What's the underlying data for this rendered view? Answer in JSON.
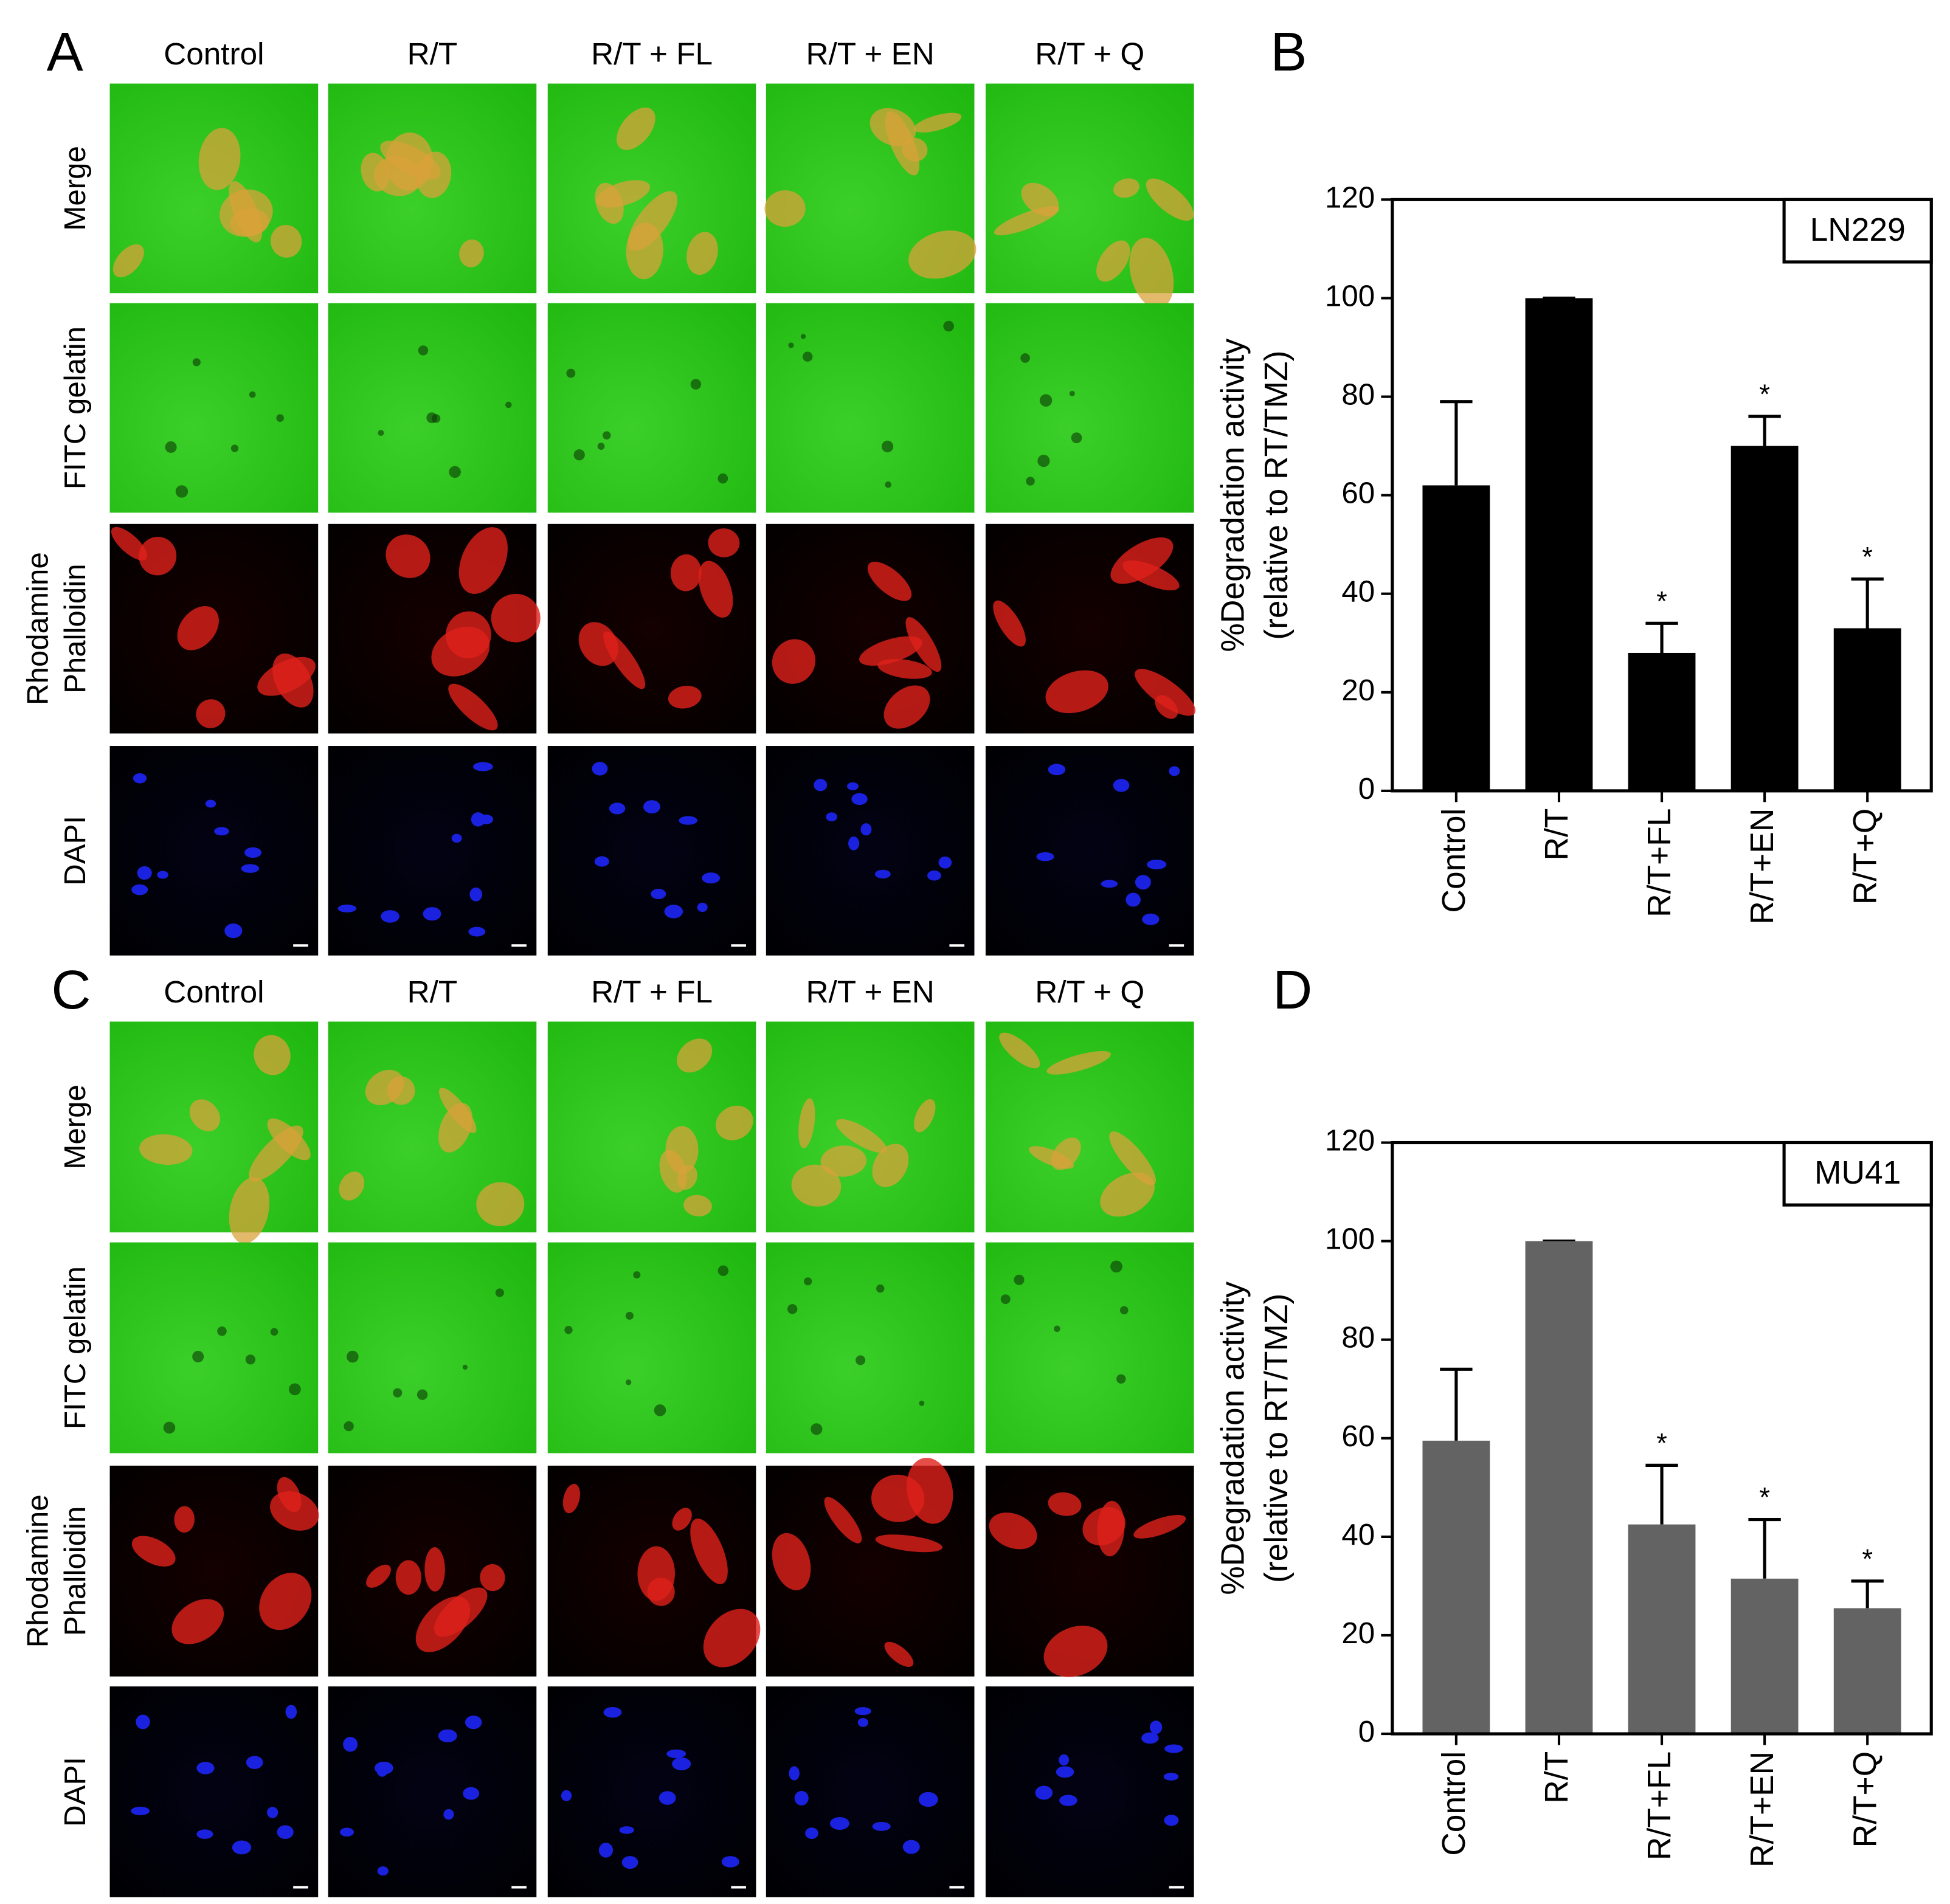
{
  "panel_a": {
    "label": "A",
    "columns": [
      "Control",
      "R/T",
      "R/T + FL",
      "R/T + EN",
      "R/T + Q"
    ],
    "rows": [
      "Merge",
      "FITC gelatin",
      [
        "Rhodamine",
        "Phalloidin"
      ],
      "DAPI"
    ]
  },
  "panel_c": {
    "label": "C",
    "columns": [
      "Control",
      "R/T",
      "R/T + FL",
      "R/T + EN",
      "R/T + Q"
    ],
    "rows": [
      "Merge",
      "FITC gelatin",
      [
        "Rhodamine",
        "Phalloidin"
      ],
      "DAPI"
    ]
  },
  "chart_data": [
    {
      "type": "bar",
      "panel": "B",
      "annotation": "LN229",
      "y_label": [
        "%Degradation activity",
        "(relative to RT/TMZ)"
      ],
      "categories": [
        "Control",
        "R/T",
        "R/T+FL",
        "R/T+EN",
        "R/T+Q"
      ],
      "values": [
        62,
        100,
        28,
        70,
        33
      ],
      "errors": [
        17,
        0,
        6,
        6,
        10
      ],
      "significance": [
        null,
        null,
        "*",
        "*",
        "*"
      ],
      "color": "#000000",
      "ylim": [
        0,
        120
      ],
      "yticks": [
        0,
        20,
        40,
        60,
        80,
        100,
        120
      ]
    },
    {
      "type": "bar",
      "panel": "D",
      "annotation": "MU41",
      "y_label": [
        "%Degradation activity",
        "(relative to RT/TMZ)"
      ],
      "categories": [
        "Control",
        "R/T",
        "R/T+FL",
        "R/T+EN",
        "R/T+Q"
      ],
      "values": [
        59.5,
        100,
        42.5,
        31.5,
        25.5
      ],
      "errors": [
        14.5,
        0,
        12,
        12,
        5.5
      ],
      "significance": [
        null,
        null,
        "*",
        "*",
        "*"
      ],
      "color": "#636363",
      "ylim": [
        0,
        120
      ],
      "yticks": [
        0,
        20,
        40,
        60,
        80,
        100,
        120
      ]
    }
  ]
}
